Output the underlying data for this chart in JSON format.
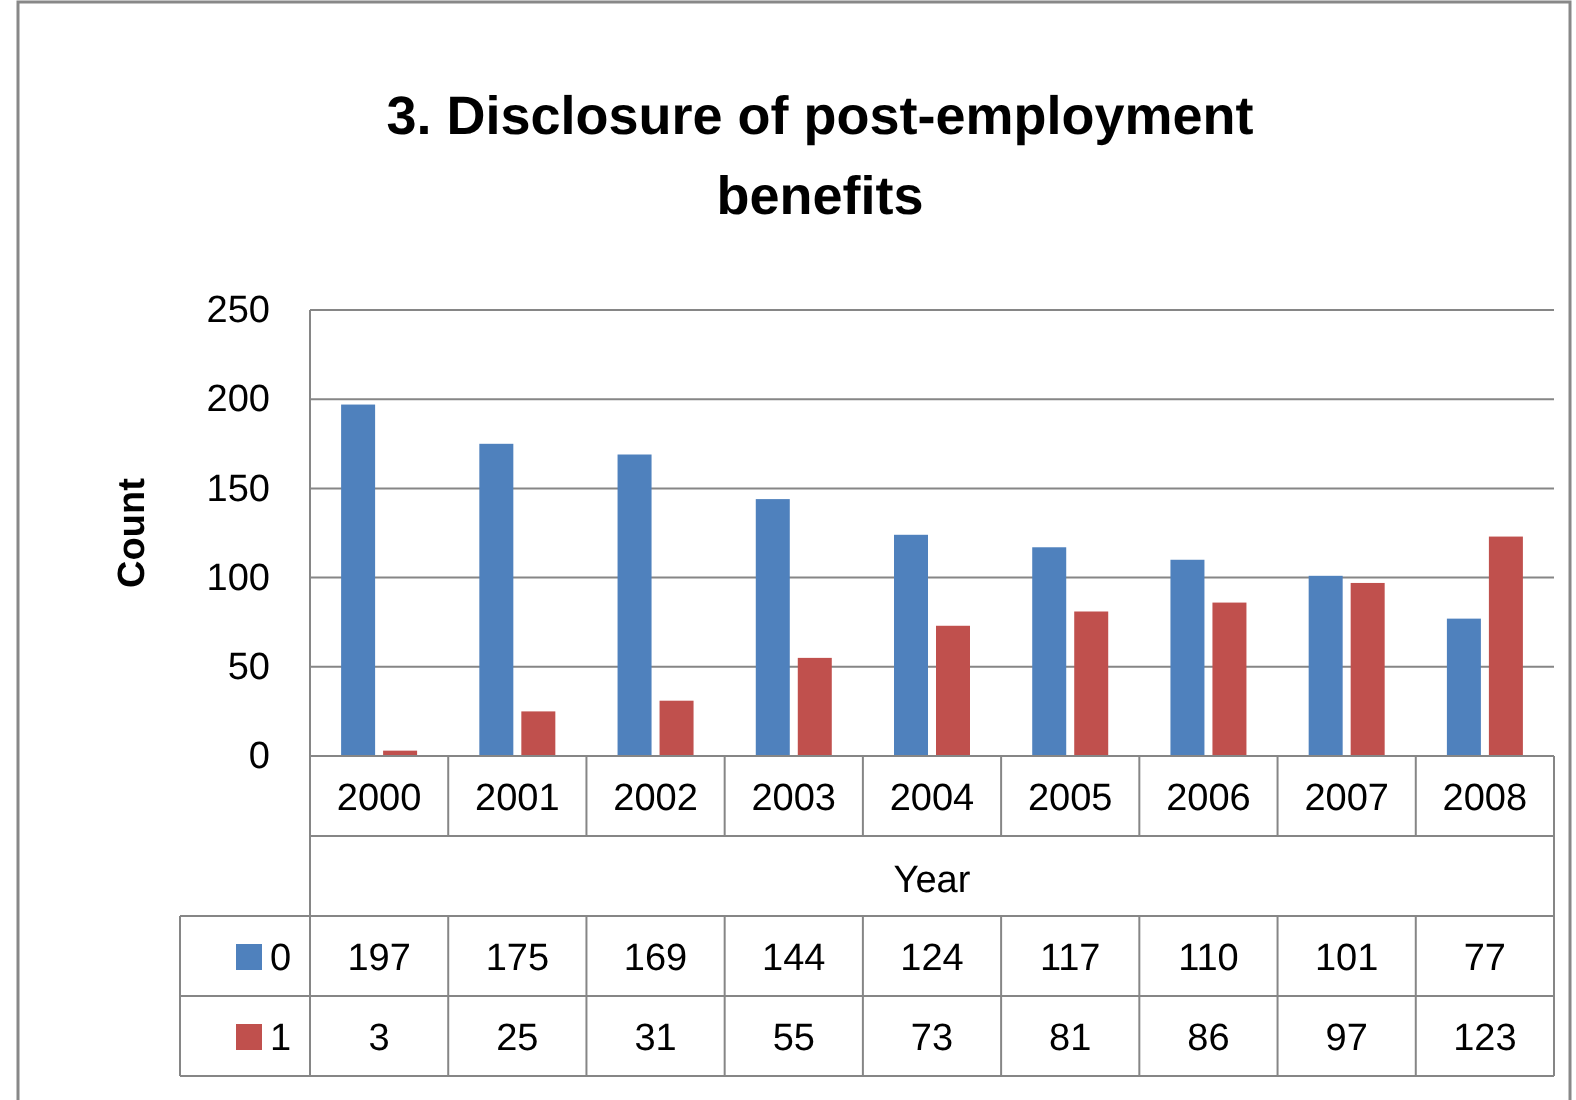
{
  "chart_data": {
    "type": "bar",
    "title": "3. Disclosure of post-employment benefits",
    "xlabel": "Year",
    "ylabel": "Count",
    "categories": [
      "2000",
      "2001",
      "2002",
      "2003",
      "2004",
      "2005",
      "2006",
      "2007",
      "2008"
    ],
    "series": [
      {
        "name": "0",
        "color": "#4f81bd",
        "values": [
          197,
          175,
          169,
          144,
          124,
          117,
          110,
          101,
          77
        ]
      },
      {
        "name": "1",
        "color": "#c0504d",
        "values": [
          3,
          25,
          31,
          55,
          73,
          81,
          86,
          97,
          123
        ]
      }
    ],
    "ylim": [
      0,
      250
    ],
    "yticks": [
      0,
      50,
      100,
      150,
      200,
      250
    ],
    "grid": "y",
    "legend": "bottom",
    "data_labels": true
  }
}
